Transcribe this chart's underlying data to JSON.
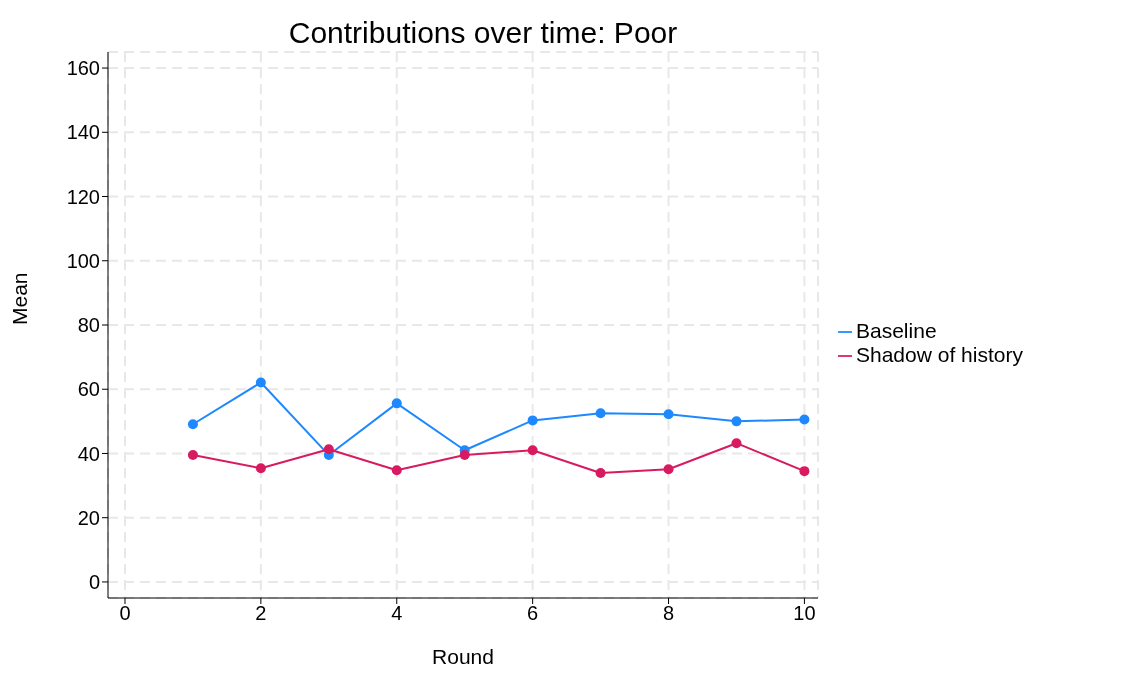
{
  "chart_data": {
    "type": "line",
    "title": "Contributions over time: Poor",
    "xlabel": "Round",
    "ylabel": "Mean",
    "x": [
      1,
      2,
      3,
      4,
      5,
      6,
      7,
      8,
      9,
      10
    ],
    "series": [
      {
        "name": "Baseline",
        "color": "#1e88ff",
        "values": [
          49.1,
          62.1,
          39.5,
          55.6,
          41,
          50.3,
          52.5,
          52.2,
          50,
          50.6
        ]
      },
      {
        "name": "Shadow of history",
        "color": "#d81b60",
        "values": [
          39.5,
          35.4,
          41.3,
          34.8,
          39.5,
          41,
          33.9,
          35.1,
          43.2,
          34.5
        ]
      }
    ],
    "xlim": [
      -0.25,
      10.2
    ],
    "xticks": [
      0,
      2,
      4,
      6,
      8,
      10
    ],
    "ylim": [
      -5,
      165
    ],
    "yticks": [
      0,
      20,
      40,
      60,
      80,
      100,
      120,
      140,
      160
    ],
    "grid": true,
    "legend": "right",
    "marker": "circle",
    "line_style": "solid"
  }
}
